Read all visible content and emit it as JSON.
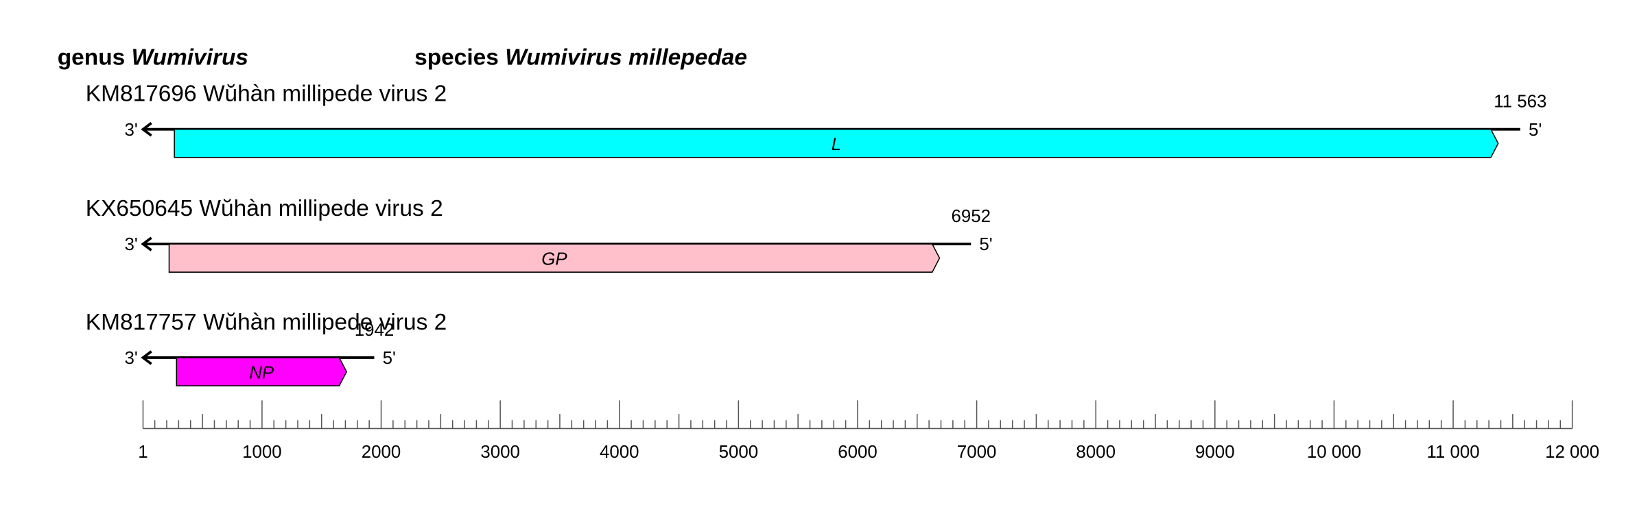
{
  "chart_data": {
    "type": "genome-map",
    "genus_label": "genus",
    "genus": "Wumivirus",
    "species_label": "species",
    "species": "Wumivirus millepedae",
    "left_end": "3'",
    "right_end": "5'",
    "segments": [
      {
        "name": "KM817696 Wŭhàn millipede virus 2",
        "length": {
          "value": 11563,
          "label": "11 563"
        },
        "genes": [
          {
            "label": "L",
            "start": 264,
            "end": 11378,
            "color": "#00ffff"
          }
        ]
      },
      {
        "name": "KX650645 Wŭhàn millipede virus 2",
        "length": 6952,
        "genes": [
          {
            "label": "GP",
            "start": 220,
            "end": 6688,
            "color": "#ffc0cb"
          }
        ]
      },
      {
        "name": "KM817757 Wŭhàn millipede virus 2",
        "length": 1942,
        "genes": [
          {
            "label": "NP",
            "start": 282,
            "end": 1710,
            "color": "#ff00ff"
          }
        ]
      }
    ],
    "xlim": [
      1,
      12000
    ],
    "xticks": [
      1,
      1000,
      2000,
      3000,
      4000,
      5000,
      6000,
      7000,
      8000,
      9000,
      {
        "value": 10000,
        "label": "10 000"
      },
      {
        "value": 11000,
        "label": "11 000"
      },
      {
        "value": 12000,
        "label": "12 000"
      }
    ],
    "minor_tick_step": 100
  }
}
